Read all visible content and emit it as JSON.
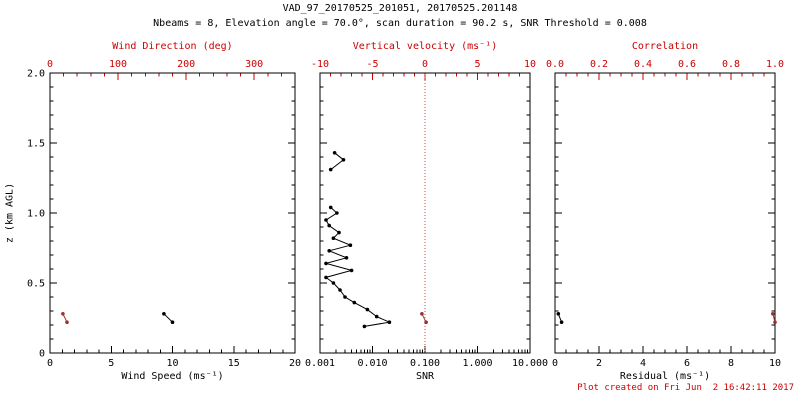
{
  "title": "VAD_97_20170525_201051, 20170525.201148",
  "subtitle": "Nbeams = 8, Elevation angle = 70.0°, scan duration = 90.2 s, SNR Threshold = 0.008",
  "footer": "Plot created on Fri Jun  2 16:42:11 2017",
  "colors": {
    "frame": "#000000",
    "axis_accent": "#cc0000",
    "data_red": "#993333",
    "ref_line": "#cc4444",
    "background": "#ffffff"
  },
  "chart_data": [
    {
      "name": "wind-speed-direction",
      "type": "scatter",
      "y": {
        "label": "z (km AGL)",
        "lim": [
          0,
          2.0
        ],
        "ticks": [
          0,
          0.5,
          1.0,
          1.5,
          2.0
        ],
        "tick_labels": [
          "0",
          "0.5",
          "1.0",
          "1.5",
          "2.0"
        ],
        "minor_step": 0.1,
        "show_labels": true
      },
      "x_bottom": {
        "label": "Wind Speed (ms⁻¹)",
        "lim": [
          0,
          20
        ],
        "ticks": [
          0,
          5,
          10,
          15,
          20
        ],
        "tick_labels": [
          "0",
          "5",
          "10",
          "15",
          "20"
        ],
        "minor_step": 1,
        "color": "#000000"
      },
      "x_top": {
        "label": "Wind Direction (deg)",
        "lim": [
          0,
          360
        ],
        "ticks": [
          0,
          100,
          200,
          300
        ],
        "tick_labels": [
          "0",
          "100",
          "200",
          "300"
        ],
        "minor_step": 20,
        "color": "#cc0000"
      },
      "series": [
        {
          "name": "wind-speed-profile",
          "axis": "bottom",
          "color": "#000000",
          "points": [
            [
              9.3,
              0.28
            ],
            [
              10.0,
              0.22
            ]
          ]
        },
        {
          "name": "wind-direction-profile",
          "axis": "top",
          "color": "#993333",
          "points": [
            [
              19,
              0.28
            ],
            [
              25,
              0.22
            ]
          ]
        }
      ]
    },
    {
      "name": "snr-vertical-velocity",
      "type": "scatter",
      "y": {
        "lim": [
          0,
          2.0
        ],
        "ticks": [
          0,
          0.5,
          1.0,
          1.5,
          2.0
        ],
        "tick_labels": [
          "0",
          "0.5",
          "1.0",
          "1.5",
          "2.0"
        ],
        "minor_step": 0.1,
        "show_labels": false
      },
      "x_bottom": {
        "label": "SNR",
        "log": true,
        "lim": [
          0.001,
          10
        ],
        "ticks": [
          0.001,
          0.01,
          0.1,
          1,
          10
        ],
        "tick_labels": [
          "0.001",
          "0.010",
          "0.100",
          "1.000",
          "10.000"
        ],
        "color": "#000000"
      },
      "x_top": {
        "label": "Vertical velocity (ms⁻¹)",
        "lim": [
          -10,
          10
        ],
        "ticks": [
          -10,
          -5,
          0,
          5,
          10
        ],
        "tick_labels": [
          "-10",
          "-5",
          "0",
          "5",
          "10"
        ],
        "minor_step": 1,
        "color": "#cc0000"
      },
      "ref_line": {
        "axis": "top",
        "value": 0,
        "color": "#cc4444",
        "style": "dotted"
      },
      "series": [
        {
          "name": "snr-profile-lower",
          "axis": "bottom",
          "color": "#000000",
          "points": [
            [
              0.007,
              0.19
            ],
            [
              0.021,
              0.22
            ],
            [
              0.012,
              0.26
            ],
            [
              0.008,
              0.31
            ],
            [
              0.0045,
              0.36
            ],
            [
              0.003,
              0.4
            ],
            [
              0.0024,
              0.45
            ],
            [
              0.0018,
              0.5
            ],
            [
              0.0013,
              0.54
            ],
            [
              0.004,
              0.59
            ],
            [
              0.0013,
              0.64
            ],
            [
              0.0032,
              0.68
            ],
            [
              0.0015,
              0.73
            ],
            [
              0.0038,
              0.77
            ],
            [
              0.0018,
              0.82
            ],
            [
              0.0023,
              0.86
            ],
            [
              0.0015,
              0.91
            ],
            [
              0.0013,
              0.95
            ],
            [
              0.0021,
              1.0
            ],
            [
              0.0016,
              1.04
            ]
          ]
        },
        {
          "name": "snr-profile-upper",
          "axis": "bottom",
          "color": "#000000",
          "points": [
            [
              0.0016,
              1.31
            ],
            [
              0.0028,
              1.38
            ],
            [
              0.0019,
              1.43
            ]
          ]
        },
        {
          "name": "vertical-velocity-points",
          "axis": "top",
          "color": "#993333",
          "points": [
            [
              -0.3,
              0.28
            ],
            [
              0.1,
              0.22
            ]
          ]
        }
      ]
    },
    {
      "name": "residual-correlation",
      "type": "scatter",
      "y": {
        "lim": [
          0,
          2.0
        ],
        "ticks": [
          0,
          0.5,
          1.0,
          1.5,
          2.0
        ],
        "tick_labels": [
          "0",
          "0.5",
          "1.0",
          "1.5",
          "2.0"
        ],
        "minor_step": 0.1,
        "show_labels": false
      },
      "x_bottom": {
        "label": "Residual (ms⁻¹)",
        "lim": [
          0,
          10
        ],
        "ticks": [
          0,
          2,
          4,
          6,
          8,
          10
        ],
        "tick_labels": [
          "0",
          "2",
          "4",
          "6",
          "8",
          "10"
        ],
        "minor_step": 0.5,
        "color": "#000000"
      },
      "x_top": {
        "label": "Correlation",
        "lim": [
          0,
          1
        ],
        "ticks": [
          0,
          0.2,
          0.4,
          0.6,
          0.8,
          1.0
        ],
        "tick_labels": [
          "0.0",
          "0.2",
          "0.4",
          "0.6",
          "0.8",
          "1.0"
        ],
        "minor_step": 0.05,
        "color": "#cc0000"
      },
      "series": [
        {
          "name": "residual-profile",
          "axis": "bottom",
          "color": "#000000",
          "points": [
            [
              0.15,
              0.28
            ],
            [
              0.3,
              0.22
            ]
          ]
        },
        {
          "name": "correlation-points",
          "axis": "top",
          "color": "#993333",
          "points": [
            [
              0.99,
              0.28
            ],
            [
              1.0,
              0.22
            ]
          ]
        }
      ]
    }
  ]
}
